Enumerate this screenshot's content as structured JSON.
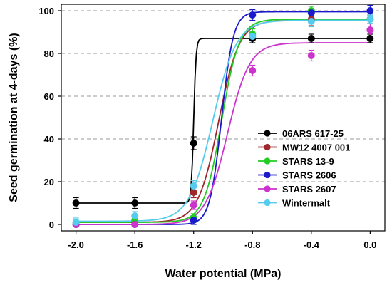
{
  "chart_data": {
    "type": "line",
    "xlabel": "Water potential (MPa)",
    "ylabel": "Seed germination at 4-days (%)",
    "xlim": [
      -2.1,
      0.1
    ],
    "ylim": [
      -3,
      103
    ],
    "xticks": [
      -2.0,
      -1.6,
      -1.2,
      -0.8,
      -0.4,
      0.0
    ],
    "xtick_labels": [
      "-2.0",
      "-1.6",
      "-1.2",
      "-0.8",
      "-0.4",
      "0.0"
    ],
    "yticks": [
      0,
      20,
      40,
      60,
      80,
      100
    ],
    "ytick_labels": [
      "0",
      "20",
      "40",
      "60",
      "80",
      "100"
    ],
    "grid": "horizontal dashed",
    "legend_position": "lower-right",
    "series": [
      {
        "name": "06ARS 617-25",
        "color": "#000000",
        "x": [
          -2.0,
          -1.6,
          -1.2,
          -0.8,
          -0.4,
          0.0
        ],
        "y": [
          10,
          10,
          38,
          87,
          87,
          87
        ],
        "err": [
          2.5,
          2.5,
          3,
          2,
          2,
          2
        ],
        "fit": {
          "min": 10,
          "max": 87,
          "x50": -1.2,
          "slope": 0.008
        }
      },
      {
        "name": "MW12 4007 001",
        "color": "#a0282a",
        "x": [
          -2.0,
          -1.6,
          -1.2,
          -0.8,
          -0.4,
          0.0
        ],
        "y": [
          0,
          1,
          15,
          88,
          96,
          96
        ],
        "err": [
          1,
          1,
          2.5,
          2,
          3,
          2
        ],
        "fit": {
          "min": 1,
          "max": 95.5,
          "x50": -1.03,
          "slope": 0.07
        }
      },
      {
        "name": "STARS 13-9",
        "color": "#22cc22",
        "x": [
          -2.0,
          -1.6,
          -1.2,
          -0.8,
          -0.4,
          0.0
        ],
        "y": [
          1,
          2,
          3,
          89,
          100,
          96
        ],
        "err": [
          1,
          1.5,
          2,
          2.5,
          2,
          2
        ],
        "fit": {
          "min": 1,
          "max": 96,
          "x50": -1.01,
          "slope": 0.06
        }
      },
      {
        "name": "STARS 2606",
        "color": "#1a1acc",
        "x": [
          -2.0,
          -1.6,
          -1.2,
          -0.8,
          -0.4,
          0.0
        ],
        "y": [
          0,
          0,
          2,
          98,
          99,
          100
        ],
        "err": [
          1,
          1,
          2,
          2.5,
          2,
          2.5
        ],
        "fit": {
          "min": 0,
          "max": 99.5,
          "x50": -1.01,
          "slope": 0.04
        }
      },
      {
        "name": "STARS 2607",
        "color": "#cc33cc",
        "x": [
          -2.0,
          -1.6,
          -1.2,
          -0.8,
          -0.4,
          0.0
        ],
        "y": [
          0,
          0,
          9,
          72,
          79,
          91
        ],
        "err": [
          1,
          1,
          2,
          2.5,
          2.5,
          3
        ],
        "fit": {
          "min": 0,
          "max": 85,
          "x50": -0.97,
          "slope": 0.075
        }
      },
      {
        "name": "Wintermalt",
        "color": "#55ccee",
        "x": [
          -2.0,
          -1.6,
          -1.2,
          -0.8,
          -0.4,
          0.0
        ],
        "y": [
          1,
          4,
          18,
          88,
          95,
          96
        ],
        "err": [
          2,
          2,
          2.5,
          2,
          2.5,
          2
        ],
        "fit": {
          "min": 1.5,
          "max": 95.5,
          "x50": -1.07,
          "slope": 0.08
        }
      }
    ]
  }
}
